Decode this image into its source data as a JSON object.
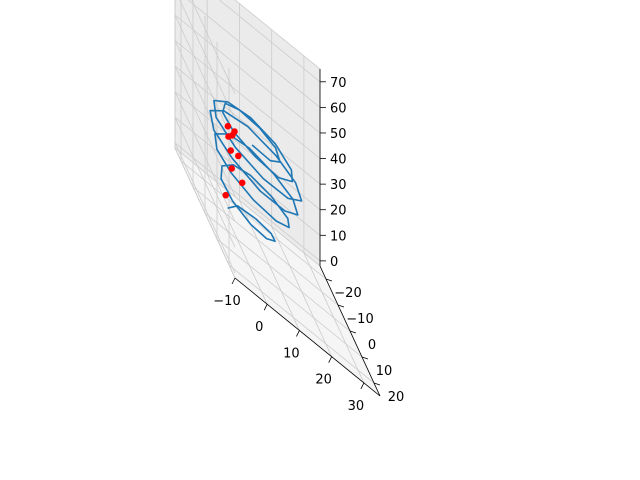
{
  "chart_data": {
    "type": "line3d",
    "title": "",
    "xlabel": "",
    "ylabel": "",
    "zlabel": "",
    "xlim": [
      -10,
      35
    ],
    "ylim": [
      -25,
      25
    ],
    "zlim": [
      -2,
      75
    ],
    "x_ticks": [
      "−10",
      "0",
      "10",
      "20",
      "30"
    ],
    "y_ticks": [
      "−20",
      "−10",
      "0",
      "10",
      "20"
    ],
    "z_ticks": [
      "0",
      "10",
      "20",
      "30",
      "40",
      "50",
      "60",
      "70"
    ],
    "grid": true,
    "colors": {
      "line": "#1f77b4",
      "markers": "#ff0000",
      "pane_back": "#ebebeb",
      "pane_side": "#f2f2f2",
      "pane_floor": "#f5f5f5",
      "grid": "#cccccc",
      "axis": "#000000"
    },
    "series": [
      {
        "kind": "line",
        "description_of_shape": "chaotic looping spiral trajectory",
        "points_xyz": [
          [
            0.0,
            -8.0,
            2.0
          ],
          [
            4.0,
            -10.5,
            4.5
          ],
          [
            9.0,
            -8.5,
            6.5
          ],
          [
            12.0,
            -4.0,
            8.5
          ],
          [
            11.0,
            2.0,
            10.5
          ],
          [
            6.5,
            7.0,
            12.0
          ],
          [
            1.0,
            8.5,
            13.5
          ],
          [
            -3.5,
            5.5,
            15.0
          ],
          [
            -5.0,
            0.0,
            16.5
          ],
          [
            -2.5,
            -6.0,
            18.0
          ],
          [
            2.5,
            -10.0,
            19.5
          ],
          [
            8.0,
            -10.5,
            20.5
          ],
          [
            13.0,
            -6.5,
            21.5
          ],
          [
            15.5,
            0.5,
            22.5
          ],
          [
            13.5,
            7.0,
            23.5
          ],
          [
            8.0,
            11.0,
            24.5
          ],
          [
            1.0,
            11.0,
            25.5
          ],
          [
            -4.5,
            7.0,
            26.5
          ],
          [
            -6.5,
            0.5,
            27.0
          ],
          [
            -4.5,
            -6.5,
            28.0
          ],
          [
            1.5,
            -11.5,
            29.0
          ],
          [
            8.5,
            -12.5,
            29.5
          ],
          [
            14.5,
            -8.0,
            30.0
          ],
          [
            17.5,
            -0.5,
            31.0
          ],
          [
            16.0,
            7.5,
            31.5
          ],
          [
            10.0,
            13.0,
            32.5
          ],
          [
            2.0,
            14.0,
            33.0
          ],
          [
            -5.0,
            9.5,
            34.0
          ],
          [
            -8.0,
            2.0,
            34.5
          ],
          [
            -6.0,
            -6.5,
            35.5
          ],
          [
            0.5,
            -12.5,
            36.0
          ],
          [
            8.5,
            -14.0,
            36.5
          ],
          [
            15.5,
            -9.5,
            37.0
          ],
          [
            18.5,
            -1.0,
            38.0
          ],
          [
            17.0,
            8.0,
            38.5
          ],
          [
            10.5,
            14.0,
            39.0
          ],
          [
            2.5,
            15.0,
            39.5
          ],
          [
            -4.5,
            10.5,
            40.0
          ],
          [
            -7.5,
            2.5,
            40.5
          ],
          [
            -5.0,
            -6.0,
            41.0
          ],
          [
            1.5,
            -12.0,
            41.0
          ],
          [
            9.0,
            -13.0,
            41.5
          ],
          [
            15.0,
            -8.5,
            42.0
          ],
          [
            17.0,
            -0.5,
            42.0
          ],
          [
            14.5,
            7.0,
            42.5
          ],
          [
            8.5,
            11.5,
            42.5
          ],
          [
            1.5,
            11.0,
            43.0
          ],
          [
            -3.5,
            6.5,
            43.0
          ],
          [
            -4.5,
            0.0,
            43.0
          ],
          [
            -1.5,
            -6.0,
            43.5
          ],
          [
            4.0,
            -9.0,
            43.5
          ],
          [
            10.0,
            -8.0,
            43.5
          ],
          [
            13.0,
            -3.0,
            44.0
          ],
          [
            12.0,
            3.5,
            44.0
          ],
          [
            7.5,
            7.5,
            44.0
          ],
          [
            2.0,
            7.0,
            44.0
          ]
        ]
      },
      {
        "kind": "markers",
        "points_xyz": [
          [
            2.0,
            -15.0,
            2.0
          ],
          [
            3.5,
            -14.0,
            15.0
          ],
          [
            6.0,
            -12.0,
            14.0
          ],
          [
            3.0,
            -13.5,
            22.0
          ],
          [
            5.0,
            -12.5,
            23.0
          ],
          [
            2.5,
            -14.0,
            26.5
          ],
          [
            3.5,
            -13.5,
            28.5
          ],
          [
            2.5,
            -14.5,
            30.0
          ],
          [
            4.0,
            -13.0,
            31.0
          ]
        ]
      }
    ]
  }
}
